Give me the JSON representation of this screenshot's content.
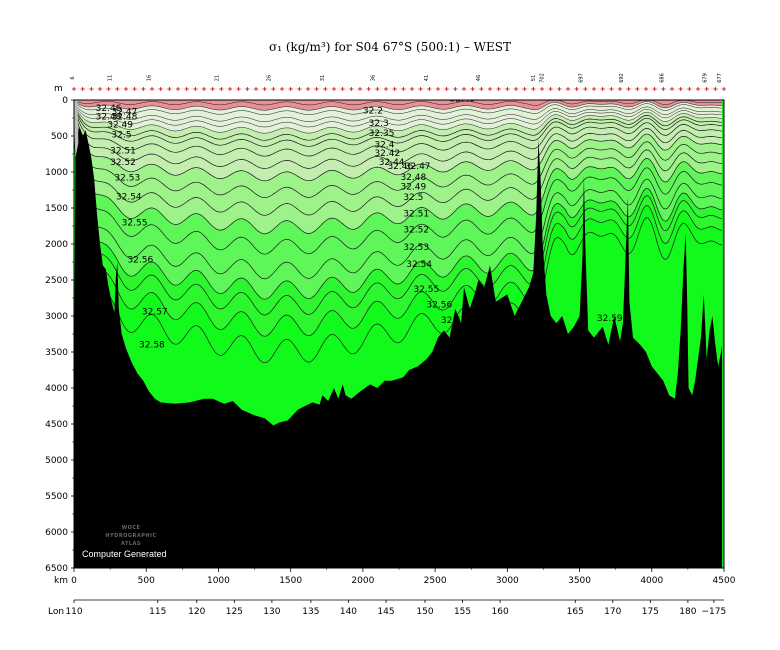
{
  "chart_data": {
    "type": "section",
    "title": "σ₁ (kg/m³) for S04 67°S (500:1) – WEST",
    "xlabel": "km",
    "ylabel": "m",
    "lon_label": "Lon",
    "xlim": [
      0,
      4500
    ],
    "ylim": [
      0,
      6500
    ],
    "x_ticks": [
      0,
      500,
      1000,
      1500,
      2000,
      2500,
      3000,
      3500,
      4000,
      4500
    ],
    "y_ticks": [
      0,
      500,
      1000,
      1500,
      2000,
      2500,
      3000,
      3500,
      4000,
      4500,
      5000,
      5500,
      6000,
      6500
    ],
    "lon_ticks": [
      {
        "km": 0,
        "label": "110"
      },
      {
        "km": 580,
        "label": "115"
      },
      {
        "km": 850,
        "label": "120"
      },
      {
        "km": 1110,
        "label": "125"
      },
      {
        "km": 1370,
        "label": "130"
      },
      {
        "km": 1640,
        "label": "135"
      },
      {
        "km": 1900,
        "label": "140"
      },
      {
        "km": 2160,
        "label": "145"
      },
      {
        "km": 2430,
        "label": "150"
      },
      {
        "km": 2690,
        "label": "155"
      },
      {
        "km": 2950,
        "label": "160"
      },
      {
        "km": 3470,
        "label": "165"
      },
      {
        "km": 3730,
        "label": "170"
      },
      {
        "km": 3990,
        "label": "175"
      },
      {
        "km": 4250,
        "label": "180"
      },
      {
        "km": 4430,
        "label": "−175"
      }
    ],
    "station_labels": [
      {
        "km": 0,
        "label": "6"
      },
      {
        "km": 260,
        "label": "11"
      },
      {
        "km": 530,
        "label": "16"
      },
      {
        "km": 1000,
        "label": "21"
      },
      {
        "km": 1360,
        "label": "26"
      },
      {
        "km": 1730,
        "label": "31"
      },
      {
        "km": 2080,
        "label": "36"
      },
      {
        "km": 2450,
        "label": "41"
      },
      {
        "km": 2810,
        "label": "46"
      },
      {
        "km": 3190,
        "label": "51"
      },
      {
        "km": 3250,
        "label": "702"
      },
      {
        "km": 3520,
        "label": "697"
      },
      {
        "km": 3800,
        "label": "692"
      },
      {
        "km": 4080,
        "label": "686"
      },
      {
        "km": 4380,
        "label": "679"
      },
      {
        "km": 4480,
        "label": "677"
      }
    ],
    "isopycnals": [
      {
        "value": 32.2,
        "base_depth": 40
      },
      {
        "value": 32.3,
        "base_depth": 100
      },
      {
        "value": 32.35,
        "base_depth": 150
      },
      {
        "value": 32.4,
        "base_depth": 230
      },
      {
        "value": 32.42,
        "base_depth": 290
      },
      {
        "value": 32.44,
        "base_depth": 360
      },
      {
        "value": 32.46,
        "base_depth": 440
      },
      {
        "value": 32.47,
        "base_depth": 510
      },
      {
        "value": 32.48,
        "base_depth": 620
      },
      {
        "value": 32.49,
        "base_depth": 760
      },
      {
        "value": 32.5,
        "base_depth": 900
      },
      {
        "value": 32.51,
        "base_depth": 1090
      },
      {
        "value": 32.52,
        "base_depth": 1290
      },
      {
        "value": 32.53,
        "base_depth": 1500
      },
      {
        "value": 32.54,
        "base_depth": 1730
      },
      {
        "value": 32.55,
        "base_depth": 2010
      },
      {
        "value": 32.56,
        "base_depth": 2240
      },
      {
        "value": 32.57,
        "base_depth": 2420
      },
      {
        "value": 32.58,
        "base_depth": 2660
      },
      {
        "value": 32.59,
        "base_depth": 2960
      }
    ],
    "color_bands": [
      {
        "above": 32.2,
        "color": "#e8909a"
      },
      {
        "above": 32.3,
        "color": "#e2f1d8"
      },
      {
        "above": 32.45,
        "color": "#c3eeb0"
      },
      {
        "above": 32.5,
        "color": "#9df28a"
      },
      {
        "above": 32.53,
        "color": "#5ff65a"
      },
      {
        "above": 32.56,
        "color": "#2cf72e"
      },
      {
        "above": 32.58,
        "color": "#12fa1c"
      }
    ],
    "contour_labels": [
      {
        "text": "32.46",
        "km": 150,
        "depth": 150
      },
      {
        "text": "32.47",
        "km": 260,
        "depth": 200
      },
      {
        "text": "32.48",
        "km": 150,
        "depth": 270
      },
      {
        "text": "32.48",
        "km": 260,
        "depth": 270
      },
      {
        "text": "32.49",
        "km": 230,
        "depth": 380
      },
      {
        "text": "32.5",
        "km": 260,
        "depth": 520
      },
      {
        "text": "32.51",
        "km": 250,
        "depth": 740
      },
      {
        "text": "32.52",
        "km": 250,
        "depth": 900
      },
      {
        "text": "32.53",
        "km": 280,
        "depth": 1120
      },
      {
        "text": "32.54",
        "km": 290,
        "depth": 1380
      },
      {
        "text": "32.55",
        "km": 330,
        "depth": 1740
      },
      {
        "text": "32.56",
        "km": 370,
        "depth": 2260
      },
      {
        "text": "32.57",
        "km": 470,
        "depth": 2980
      },
      {
        "text": "32.58",
        "km": 450,
        "depth": 3440
      },
      {
        "text": "32.2",
        "km": 2000,
        "depth": 190
      },
      {
        "text": "32.3",
        "km": 2040,
        "depth": 360
      },
      {
        "text": "32.35",
        "km": 2040,
        "depth": 500
      },
      {
        "text": "32.4",
        "km": 2080,
        "depth": 660
      },
      {
        "text": "32.42",
        "km": 2080,
        "depth": 780
      },
      {
        "text": "32.44",
        "km": 2110,
        "depth": 900
      },
      {
        "text": "32.46",
        "km": 2170,
        "depth": 960
      },
      {
        "text": "32.47",
        "km": 2290,
        "depth": 960
      },
      {
        "text": "32.48",
        "km": 2260,
        "depth": 1110
      },
      {
        "text": "32.49",
        "km": 2260,
        "depth": 1240
      },
      {
        "text": "32.5",
        "km": 2280,
        "depth": 1390
      },
      {
        "text": "32.51",
        "km": 2280,
        "depth": 1620
      },
      {
        "text": "32.52",
        "km": 2280,
        "depth": 1840
      },
      {
        "text": "32.53",
        "km": 2280,
        "depth": 2080
      },
      {
        "text": "32.54",
        "km": 2300,
        "depth": 2320
      },
      {
        "text": "32.55",
        "km": 2350,
        "depth": 2670
      },
      {
        "text": "32.56",
        "km": 2440,
        "depth": 2880
      },
      {
        "text": "32.57",
        "km": 2540,
        "depth": 3100
      },
      {
        "text": "32",
        "km": 2520,
        "depth": 3470
      },
      {
        "text": "32.59",
        "km": 3620,
        "depth": 3070
      },
      {
        "text": "32.49",
        "km": 2600,
        "depth": 20
      }
    ],
    "bathymetry": [
      [
        0,
        4300
      ],
      [
        10,
        800
      ],
      [
        25,
        450
      ],
      [
        40,
        380
      ],
      [
        60,
        500
      ],
      [
        80,
        420
      ],
      [
        100,
        600
      ],
      [
        120,
        800
      ],
      [
        140,
        1100
      ],
      [
        160,
        1600
      ],
      [
        180,
        2000
      ],
      [
        200,
        2300
      ],
      [
        220,
        2350
      ],
      [
        240,
        2600
      ],
      [
        260,
        2800
      ],
      [
        280,
        2950
      ],
      [
        290,
        2450
      ],
      [
        300,
        2250
      ],
      [
        310,
        2900
      ],
      [
        330,
        3250
      ],
      [
        360,
        3450
      ],
      [
        400,
        3650
      ],
      [
        440,
        3800
      ],
      [
        480,
        3900
      ],
      [
        520,
        4050
      ],
      [
        560,
        4150
      ],
      [
        600,
        4200
      ],
      [
        700,
        4220
      ],
      [
        800,
        4200
      ],
      [
        900,
        4150
      ],
      [
        960,
        4150
      ],
      [
        1040,
        4220
      ],
      [
        1100,
        4180
      ],
      [
        1160,
        4300
      ],
      [
        1250,
        4380
      ],
      [
        1320,
        4420
      ],
      [
        1380,
        4520
      ],
      [
        1420,
        4480
      ],
      [
        1480,
        4450
      ],
      [
        1550,
        4300
      ],
      [
        1600,
        4250
      ],
      [
        1650,
        4200
      ],
      [
        1700,
        4230
      ],
      [
        1720,
        4100
      ],
      [
        1760,
        4180
      ],
      [
        1800,
        4000
      ],
      [
        1830,
        4150
      ],
      [
        1860,
        3950
      ],
      [
        1880,
        4100
      ],
      [
        1920,
        4150
      ],
      [
        1980,
        4050
      ],
      [
        2050,
        3950
      ],
      [
        2100,
        4000
      ],
      [
        2150,
        3900
      ],
      [
        2200,
        3900
      ],
      [
        2280,
        3850
      ],
      [
        2320,
        3750
      ],
      [
        2380,
        3700
      ],
      [
        2440,
        3600
      ],
      [
        2480,
        3500
      ],
      [
        2520,
        3300
      ],
      [
        2560,
        3200
      ],
      [
        2600,
        3300
      ],
      [
        2640,
        2900
      ],
      [
        2680,
        3100
      ],
      [
        2700,
        2600
      ],
      [
        2740,
        2900
      ],
      [
        2780,
        2650
      ],
      [
        2800,
        2500
      ],
      [
        2840,
        2600
      ],
      [
        2880,
        2300
      ],
      [
        2920,
        2800
      ],
      [
        2960,
        2750
      ],
      [
        3000,
        2700
      ],
      [
        3050,
        3000
      ],
      [
        3100,
        2800
      ],
      [
        3150,
        2600
      ],
      [
        3180,
        2400
      ],
      [
        3200,
        1600
      ],
      [
        3215,
        550
      ],
      [
        3230,
        1100
      ],
      [
        3245,
        2000
      ],
      [
        3270,
        2700
      ],
      [
        3300,
        3000
      ],
      [
        3340,
        3100
      ],
      [
        3380,
        3000
      ],
      [
        3420,
        3250
      ],
      [
        3460,
        3150
      ],
      [
        3500,
        3000
      ],
      [
        3520,
        2200
      ],
      [
        3530,
        1050
      ],
      [
        3540,
        2000
      ],
      [
        3560,
        3200
      ],
      [
        3600,
        3300
      ],
      [
        3660,
        3150
      ],
      [
        3700,
        3400
      ],
      [
        3740,
        3000
      ],
      [
        3780,
        3350
      ],
      [
        3800,
        3100
      ],
      [
        3820,
        2100
      ],
      [
        3835,
        1350
      ],
      [
        3845,
        2800
      ],
      [
        3870,
        3300
      ],
      [
        3920,
        3400
      ],
      [
        3960,
        3500
      ],
      [
        4000,
        3700
      ],
      [
        4040,
        3800
      ],
      [
        4080,
        3900
      ],
      [
        4120,
        4100
      ],
      [
        4160,
        4150
      ],
      [
        4180,
        3800
      ],
      [
        4200,
        3200
      ],
      [
        4220,
        2300
      ],
      [
        4235,
        1850
      ],
      [
        4245,
        2800
      ],
      [
        4255,
        4000
      ],
      [
        4280,
        4100
      ],
      [
        4300,
        3900
      ],
      [
        4320,
        3600
      ],
      [
        4340,
        3300
      ],
      [
        4360,
        2700
      ],
      [
        4380,
        3600
      ],
      [
        4400,
        3200
      ],
      [
        4420,
        3000
      ],
      [
        4440,
        3400
      ],
      [
        4460,
        3700
      ],
      [
        4480,
        3500
      ],
      [
        4500,
        3200
      ]
    ]
  },
  "atlas_logo": "WOCE HYDROGRAPHIC ATLAS",
  "credit": "Computer Generated"
}
